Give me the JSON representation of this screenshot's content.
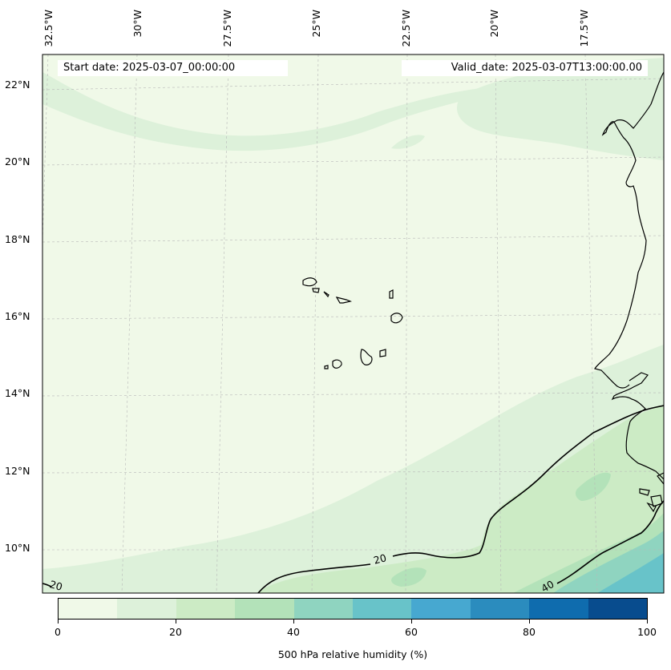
{
  "header": {
    "start_date": "Start date: 2025-03-07_00:00:00",
    "valid_date": "Valid_date: 2025-03-07T13:00:00.00"
  },
  "lon_labels": [
    "32.5°W",
    "30°W",
    "27.5°W",
    "25°W",
    "22.5°W",
    "20°W",
    "17.5°W"
  ],
  "lat_labels": [
    "22°N",
    "20°N",
    "18°N",
    "16°N",
    "14°N",
    "12°N",
    "10°N"
  ],
  "contour_labels": [
    "20",
    "20",
    "40"
  ],
  "colorbar": {
    "label": "500 hPa relative humidity (%)",
    "ticks": [
      "0",
      "20",
      "40",
      "60",
      "80",
      "100"
    ],
    "colors": [
      "#f0f9e8",
      "#ddf1da",
      "#ccebc5",
      "#b3e2b9",
      "#8fd4c0",
      "#68c3c9",
      "#47a8d0",
      "#2b8cbe",
      "#0f6cae",
      "#084c8e"
    ]
  }
}
